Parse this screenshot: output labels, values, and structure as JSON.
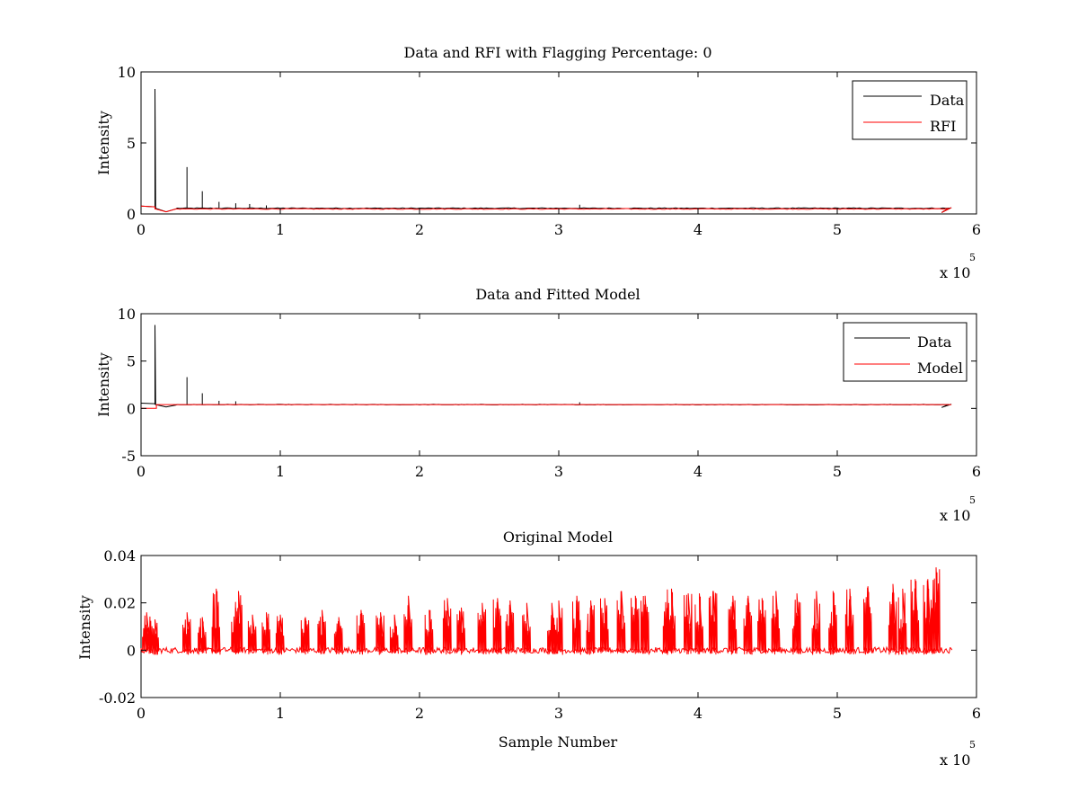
{
  "chart_data": [
    {
      "type": "line",
      "title": "Data and RFI with Flagging Percentage: 0",
      "xlabel": "",
      "ylabel": "Intensity",
      "xlim": [
        0,
        600000
      ],
      "ylim": [
        0,
        10
      ],
      "xticks": [
        0,
        1,
        2,
        3,
        4,
        5,
        6
      ],
      "xtick_labels": [
        "0",
        "1",
        "2",
        "3",
        "4",
        "5",
        "6"
      ],
      "yticks": [
        0,
        5,
        10
      ],
      "ytick_labels": [
        "0",
        "5",
        "10"
      ],
      "x_exponent_label": "x 10",
      "x_exponent": "5",
      "legend_position": "top-right",
      "series": [
        {
          "name": "Data",
          "color": "#000000",
          "baseline": 0.4,
          "spikes": [
            [
              10000,
              8.8
            ],
            [
              33000,
              3.3
            ],
            [
              44000,
              1.6
            ],
            [
              56000,
              0.85
            ],
            [
              68000,
              0.75
            ],
            [
              78000,
              0.7
            ],
            [
              90000,
              0.6
            ],
            [
              315000,
              0.65
            ]
          ],
          "end_x": 582000
        },
        {
          "name": "RFI",
          "color": "#ff0000",
          "baseline": 0.35,
          "spikes": [],
          "end_x": 582000
        }
      ]
    },
    {
      "type": "line",
      "title": "Data and Fitted Model",
      "xlabel": "",
      "ylabel": "Intensity",
      "xlim": [
        0,
        600000
      ],
      "ylim": [
        -5,
        10
      ],
      "xticks": [
        0,
        1,
        2,
        3,
        4,
        5,
        6
      ],
      "xtick_labels": [
        "0",
        "1",
        "2",
        "3",
        "4",
        "5",
        "6"
      ],
      "yticks": [
        -5,
        0,
        5,
        10
      ],
      "ytick_labels": [
        "-5",
        "0",
        "5",
        "10"
      ],
      "x_exponent_label": "x 10",
      "x_exponent": "5",
      "legend_position": "top-right",
      "series": [
        {
          "name": "Data",
          "color": "#000000",
          "baseline": 0.4,
          "spikes": [
            [
              10000,
              8.8
            ],
            [
              33000,
              3.3
            ],
            [
              44000,
              1.6
            ],
            [
              56000,
              0.8
            ],
            [
              68000,
              0.75
            ],
            [
              315000,
              0.65
            ]
          ],
          "end_x": 582000
        },
        {
          "name": "Model",
          "color": "#ff0000",
          "baseline": 0.4,
          "step": [
            [
              0,
              0.0
            ],
            [
              11000,
              0.0
            ],
            [
              11000,
              0.4
            ],
            [
              582000,
              0.4
            ]
          ],
          "end_x": 582000
        }
      ]
    },
    {
      "type": "line",
      "title": "Original Model",
      "xlabel": "Sample Number",
      "ylabel": "Intensity",
      "xlim": [
        0,
        600000
      ],
      "ylim": [
        -0.02,
        0.04
      ],
      "xticks": [
        0,
        1,
        2,
        3,
        4,
        5,
        6
      ],
      "xtick_labels": [
        "0",
        "1",
        "2",
        "3",
        "4",
        "5",
        "6"
      ],
      "yticks": [
        -0.02,
        0,
        0.02,
        0.04
      ],
      "ytick_labels": [
        "-0.02",
        "0",
        "0.02",
        "0.04"
      ],
      "x_exponent_label": "x 10",
      "x_exponent": "5",
      "series": [
        {
          "name": "",
          "color": "#ff0000",
          "baseline": 0.0,
          "end_x": 583000,
          "peaks": [
            [
              4000,
              0.016
            ],
            [
              10000,
              0.013
            ],
            [
              33000,
              0.016
            ],
            [
              44000,
              0.014
            ],
            [
              54000,
              0.026
            ],
            [
              68000,
              0.018
            ],
            [
              70000,
              0.025
            ],
            [
              80000,
              0.015
            ],
            [
              90000,
              0.016
            ],
            [
              100000,
              0.015
            ],
            [
              118000,
              0.014
            ],
            [
              130000,
              0.017
            ],
            [
              142000,
              0.014
            ],
            [
              158000,
              0.017
            ],
            [
              172000,
              0.016
            ],
            [
              182000,
              0.015
            ],
            [
              192000,
              0.023
            ],
            [
              207000,
              0.017
            ],
            [
              220000,
              0.022
            ],
            [
              230000,
              0.018
            ],
            [
              245000,
              0.02
            ],
            [
              256000,
              0.022
            ],
            [
              265000,
              0.021
            ],
            [
              277000,
              0.02
            ],
            [
              295000,
              0.02
            ],
            [
              300000,
              0.021
            ],
            [
              313000,
              0.023
            ],
            [
              323000,
              0.021
            ],
            [
              333000,
              0.022
            ],
            [
              345000,
              0.025
            ],
            [
              355000,
              0.023
            ],
            [
              362000,
              0.023
            ],
            [
              378000,
              0.021
            ],
            [
              381000,
              0.026
            ],
            [
              393000,
              0.024
            ],
            [
              401000,
              0.024
            ],
            [
              411000,
              0.025
            ],
            [
              425000,
              0.023
            ],
            [
              436000,
              0.023
            ],
            [
              446000,
              0.022
            ],
            [
              456000,
              0.025
            ],
            [
              471000,
              0.024
            ],
            [
              485000,
              0.025
            ],
            [
              497000,
              0.025
            ],
            [
              509000,
              0.026
            ],
            [
              522000,
              0.027
            ],
            [
              540000,
              0.028
            ],
            [
              547000,
              0.026
            ],
            [
              556000,
              0.03
            ],
            [
              565000,
              0.03
            ],
            [
              571000,
              0.035
            ]
          ]
        }
      ]
    }
  ]
}
